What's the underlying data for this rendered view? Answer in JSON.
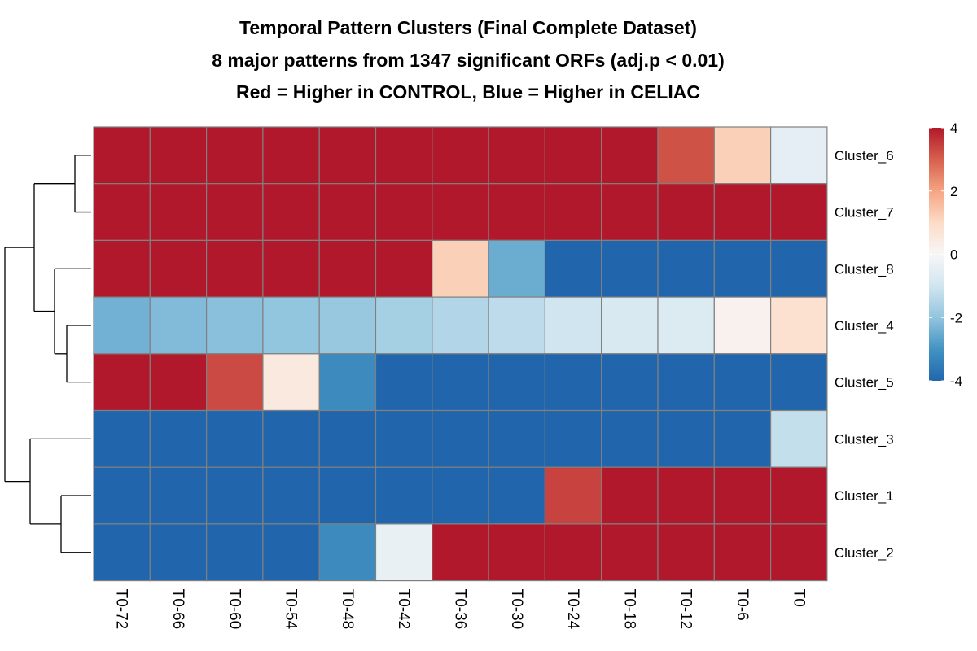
{
  "chart_data": {
    "type": "heatmap",
    "title": "Temporal Pattern Clusters (Final Complete Dataset)",
    "subtitle": "8 major patterns from 1347 significant ORFs (adj.p < 0.01)",
    "subtitle2": "Red = Higher in CONTROL, Blue = Higher in CELIAC",
    "columns": [
      "T0-72",
      "T0-66",
      "T0-60",
      "T0-54",
      "T0-48",
      "T0-42",
      "T0-36",
      "T0-30",
      "T0-24",
      "T0-18",
      "T0-12",
      "T0-6",
      "T0"
    ],
    "rows": [
      "Cluster_6",
      "Cluster_7",
      "Cluster_8",
      "Cluster_4",
      "Cluster_5",
      "Cluster_3",
      "Cluster_1",
      "Cluster_2"
    ],
    "values": [
      [
        4,
        4,
        4,
        4,
        4,
        4,
        4,
        4,
        4,
        4,
        3.2,
        1.2,
        -0.5
      ],
      [
        4,
        4,
        4,
        4,
        4,
        4,
        4,
        4,
        4,
        4,
        4,
        4,
        4
      ],
      [
        4,
        4,
        4,
        4,
        4,
        4,
        1.2,
        -2.5,
        -4,
        -4,
        -4,
        -4,
        -4
      ],
      [
        -2.4,
        -2.2,
        -2.1,
        -2.0,
        -1.9,
        -1.7,
        -1.5,
        -1.3,
        -1.0,
        -0.8,
        -0.7,
        0.2,
        0.8
      ],
      [
        4,
        4,
        3.3,
        0.5,
        -3.2,
        -4,
        -4,
        -4,
        -4,
        -4,
        -4,
        -4,
        -4
      ],
      [
        -4,
        -4,
        -4,
        -4,
        -4,
        -4,
        -4,
        -4,
        -4,
        -4,
        -4,
        -4,
        -1.2
      ],
      [
        -4,
        -4,
        -4,
        -4,
        -4,
        -4,
        -4,
        -4,
        3.4,
        4,
        4,
        4,
        4
      ],
      [
        -4,
        -4,
        -4,
        -4,
        -3.2,
        -0.4,
        4,
        4,
        4,
        4,
        4,
        4,
        4
      ]
    ],
    "color_scale": {
      "min": -4,
      "max": 4,
      "ticks": [
        4,
        2,
        0,
        -2,
        -4
      ],
      "tick_labels": [
        "4",
        "2",
        "0",
        "-2",
        "-4"
      ],
      "stops": [
        "#2166AC",
        "#4393C3",
        "#92C5DE",
        "#D1E5F0",
        "#F7F7F7",
        "#FDDBC7",
        "#F4A582",
        "#D6604D",
        "#B2182B"
      ]
    },
    "cell_border_color": "#808080"
  }
}
